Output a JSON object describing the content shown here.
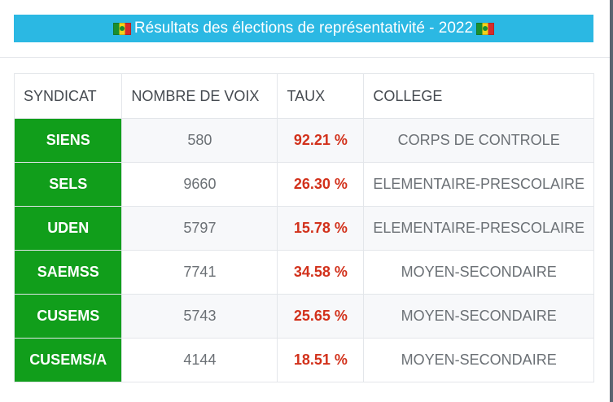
{
  "banner": {
    "title": "Résultats des élections de représentativité - 2022"
  },
  "table": {
    "headers": [
      "SYNDICAT",
      "NOMBRE DE VOIX",
      "TAUX",
      "COLLEGE"
    ],
    "rows": [
      {
        "syndicat": "SIENS",
        "voix": "580",
        "taux": "92.21 %",
        "college": "CORPS DE CONTROLE"
      },
      {
        "syndicat": "SELS",
        "voix": "9660",
        "taux": "26.30 %",
        "college": "ELEMENTAIRE-PRESCOLAIRE"
      },
      {
        "syndicat": "UDEN",
        "voix": "5797",
        "taux": "15.78 %",
        "college": "ELEMENTAIRE-PRESCOLAIRE"
      },
      {
        "syndicat": "SAEMSS",
        "voix": "7741",
        "taux": "34.58 %",
        "college": "MOYEN-SECONDAIRE"
      },
      {
        "syndicat": "CUSEMS",
        "voix": "5743",
        "taux": "25.65 %",
        "college": "MOYEN-SECONDAIRE"
      },
      {
        "syndicat": "CUSEMS/A",
        "voix": "4144",
        "taux": "18.51 %",
        "college": "MOYEN-SECONDAIRE"
      }
    ]
  },
  "colors": {
    "banner": "#2bb8e3",
    "syndicat_cell": "#119e1b",
    "taux_text": "#d2311b"
  },
  "icons": {
    "flag": "senegal-flag-icon"
  }
}
